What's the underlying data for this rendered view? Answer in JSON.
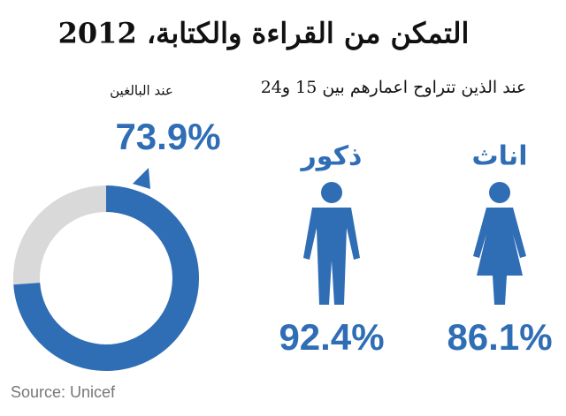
{
  "title": "التمكن من القراءة والكتابة، 2012",
  "subtitle": "عند الذين تتراوح اعمارهم بين 15 و24",
  "chart_data": [
    {
      "type": "donut",
      "title": "عند البالغين",
      "values": [
        73.9
      ],
      "value_labels": [
        "73.9%"
      ],
      "color": "#2f6db5",
      "track_color": "#d9d9d9"
    },
    {
      "type": "pictogram",
      "categories": [
        "ذكور",
        "اناث"
      ],
      "values": [
        92.4,
        86.1
      ],
      "value_labels": [
        "92.4%",
        "86.1%"
      ],
      "color": "#2f6db5"
    }
  ],
  "source": "Source: Unicef"
}
